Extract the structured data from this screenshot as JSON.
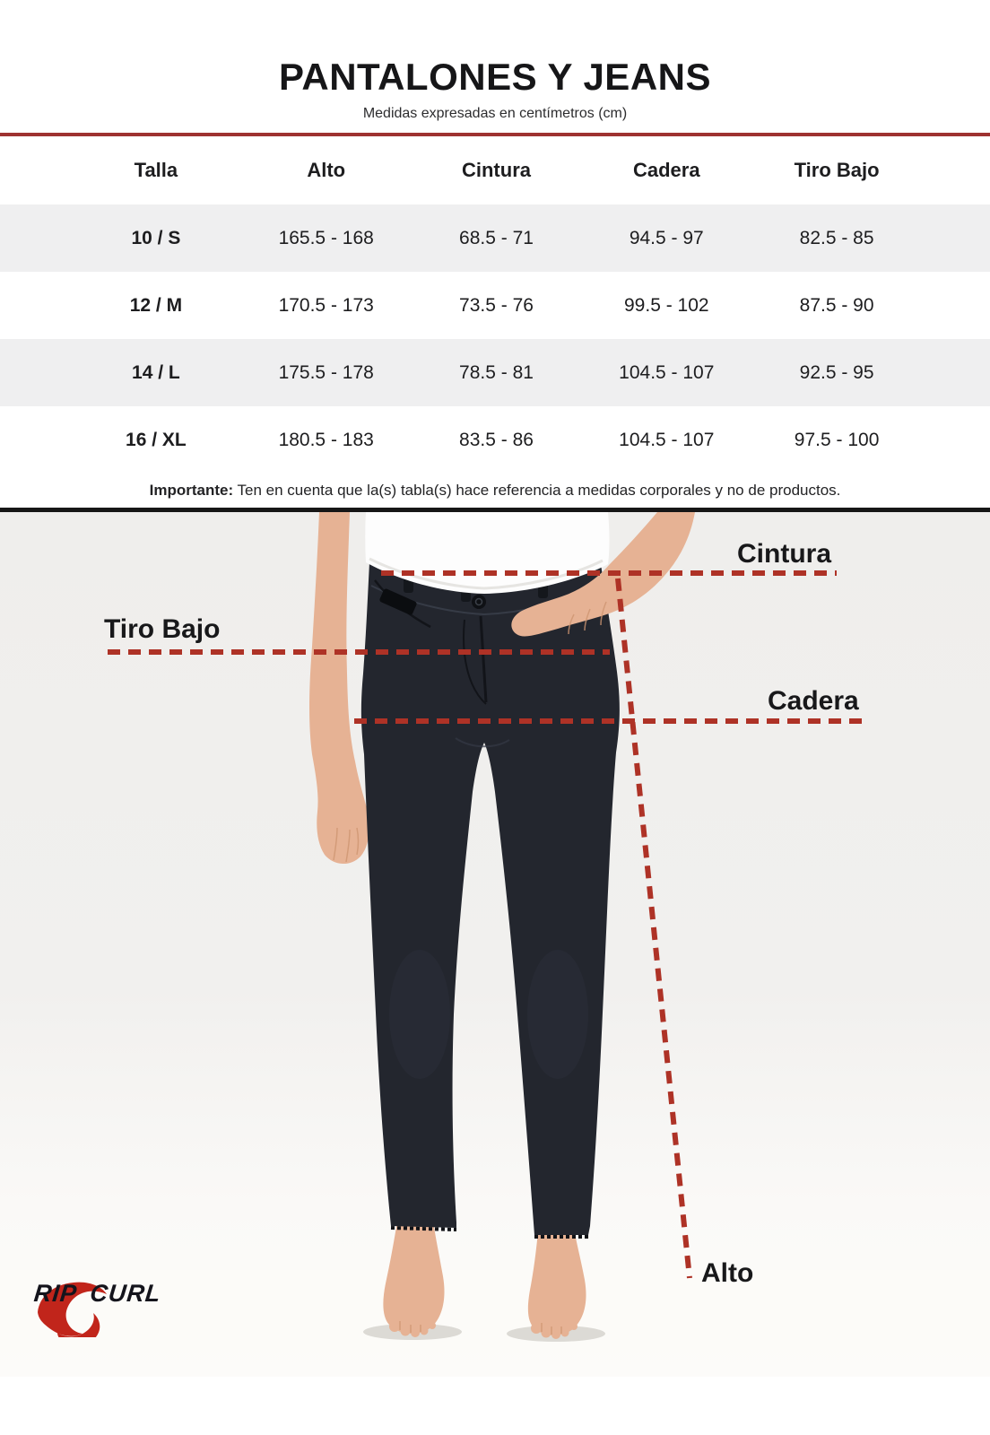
{
  "header": {
    "title": "PANTALONES Y JEANS",
    "subtitle": "Medidas expresadas en centímetros (cm)"
  },
  "size_table": {
    "columns": [
      "Talla",
      "Alto",
      "Cintura",
      "Cadera",
      "Tiro Bajo"
    ],
    "rows": [
      [
        "10 / S",
        "165.5 - 168",
        "68.5 - 71",
        "94.5 - 97",
        "82.5 - 85"
      ],
      [
        "12 / M",
        "170.5 - 173",
        "73.5 - 76",
        "99.5 - 102",
        "87.5 - 90"
      ],
      [
        "14 / L",
        "175.5 - 178",
        "78.5 - 81",
        "104.5 - 107",
        "92.5 - 95"
      ],
      [
        "16 / XL",
        "180.5 - 183",
        "83.5 - 86",
        "104.5 - 107",
        "97.5 - 100"
      ]
    ]
  },
  "note": {
    "label": "Importante:",
    "text": "Ten en cuenta que la(s) tabla(s) hace referencia a medidas corporales y no de productos."
  },
  "measurement_diagram": {
    "labels": {
      "cintura": "Cintura",
      "tiro_bajo": "Tiro Bajo",
      "cadera": "Cadera",
      "alto": "Alto"
    }
  },
  "brand": {
    "name": "RIP CURL",
    "logo_icon": "ripcurl-wave-icon"
  },
  "colors": {
    "rule_red": "#9e3230",
    "dash_red": "#ae3226",
    "table_stripe": "#efeff0",
    "photo_background": "#f0efec",
    "jeans": "#23262e",
    "skin": "#e6b294",
    "logo_red": "#c1251b"
  }
}
